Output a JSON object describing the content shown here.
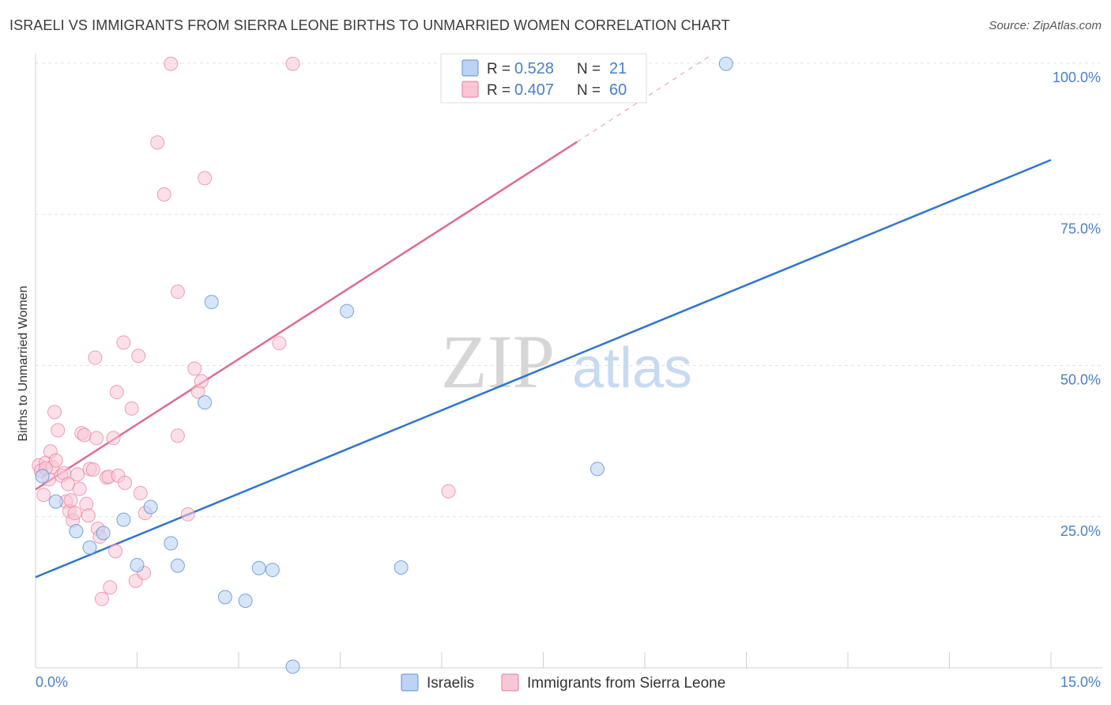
{
  "header": {
    "title": "ISRAELI VS IMMIGRANTS FROM SIERRA LEONE BIRTHS TO UNMARRIED WOMEN CORRELATION CHART",
    "source": "Source: ZipAtlas.com"
  },
  "watermark": {
    "zip": "ZIP",
    "atlas": "atlas"
  },
  "colors": {
    "israelis": "#5b8fd6",
    "israelis_fill": "#bcd3f3",
    "israelis_line": "#2f74d0",
    "sierra": "#e8799c",
    "sierra_fill": "#f8c7d6",
    "sierra_line": "#e06a93",
    "axis_text": "#4a7fcc"
  },
  "chart_data": {
    "type": "scatter",
    "title": "ISRAELI VS IMMIGRANTS FROM SIERRA LEONE BIRTHS TO UNMARRIED WOMEN CORRELATION CHART",
    "xlabel": "",
    "ylabel": "Births to Unmarried Women",
    "xlim": [
      0,
      15
    ],
    "ylim": [
      0,
      100
    ],
    "x_tick_labels": [
      "0.0%",
      "15.0%"
    ],
    "y_ticks": [
      25,
      50,
      75,
      100
    ],
    "y_tick_labels": [
      "25.0%",
      "50.0%",
      "75.0%",
      "100.0%"
    ],
    "grid": true,
    "legend_position": "top-center",
    "series": [
      {
        "name": "Israelis",
        "stats": {
          "r_label": "R =",
          "r_value": "0.528",
          "n_label": "N =",
          "n_value": "21"
        },
        "points": [
          [
            0.1,
            31.7
          ],
          [
            0.3,
            27.5
          ],
          [
            0.6,
            22.6
          ],
          [
            0.8,
            19.9
          ],
          [
            1.0,
            22.3
          ],
          [
            1.3,
            24.5
          ],
          [
            1.5,
            17.0
          ],
          [
            1.7,
            26.6
          ],
          [
            2.0,
            20.6
          ],
          [
            2.1,
            16.9
          ],
          [
            2.5,
            43.9
          ],
          [
            2.6,
            60.5
          ],
          [
            2.8,
            11.7
          ],
          [
            3.1,
            11.1
          ],
          [
            3.3,
            16.5
          ],
          [
            3.5,
            16.2
          ],
          [
            3.8,
            0.2
          ],
          [
            4.6,
            59.0
          ],
          [
            5.4,
            16.6
          ],
          [
            8.3,
            32.9
          ],
          [
            10.2,
            99.9
          ]
        ],
        "trend": {
          "x0": 0,
          "y0": 15.0,
          "x1": 15,
          "y1": 84.0
        }
      },
      {
        "name": "Immigrants from Sierra Leone",
        "stats": {
          "r_label": "R =",
          "r_value": "0.407",
          "n_label": "N =",
          "n_value": "60"
        },
        "points": [
          [
            0.05,
            33.5
          ],
          [
            0.08,
            32.6
          ],
          [
            0.12,
            28.6
          ],
          [
            0.15,
            33.9
          ],
          [
            0.2,
            31.2
          ],
          [
            0.22,
            35.8
          ],
          [
            0.25,
            33.2
          ],
          [
            0.28,
            42.3
          ],
          [
            0.3,
            34.3
          ],
          [
            0.33,
            39.3
          ],
          [
            0.38,
            31.8
          ],
          [
            0.42,
            32.2
          ],
          [
            0.45,
            27.5
          ],
          [
            0.48,
            30.4
          ],
          [
            0.5,
            25.9
          ],
          [
            0.52,
            27.7
          ],
          [
            0.55,
            24.4
          ],
          [
            0.58,
            25.6
          ],
          [
            0.62,
            32.0
          ],
          [
            0.65,
            29.6
          ],
          [
            0.68,
            38.8
          ],
          [
            0.72,
            38.5
          ],
          [
            0.75,
            27.1
          ],
          [
            0.78,
            25.2
          ],
          [
            0.8,
            32.9
          ],
          [
            0.85,
            32.8
          ],
          [
            0.88,
            51.3
          ],
          [
            0.9,
            38.0
          ],
          [
            0.92,
            23.0
          ],
          [
            0.95,
            21.7
          ],
          [
            0.98,
            11.4
          ],
          [
            1.05,
            31.5
          ],
          [
            1.08,
            31.6
          ],
          [
            1.1,
            13.3
          ],
          [
            1.15,
            38.0
          ],
          [
            1.18,
            19.3
          ],
          [
            1.2,
            45.6
          ],
          [
            1.22,
            31.8
          ],
          [
            1.3,
            53.8
          ],
          [
            1.32,
            30.6
          ],
          [
            1.42,
            42.9
          ],
          [
            1.48,
            14.4
          ],
          [
            1.52,
            51.6
          ],
          [
            1.55,
            28.9
          ],
          [
            1.6,
            15.7
          ],
          [
            1.62,
            25.6
          ],
          [
            1.8,
            86.9
          ],
          [
            1.9,
            78.3
          ],
          [
            2.0,
            99.9
          ],
          [
            2.1,
            62.2
          ],
          [
            2.1,
            38.4
          ],
          [
            2.25,
            25.4
          ],
          [
            2.35,
            49.5
          ],
          [
            2.4,
            45.7
          ],
          [
            2.45,
            47.4
          ],
          [
            2.5,
            81.0
          ],
          [
            3.6,
            53.7
          ],
          [
            3.8,
            99.9
          ],
          [
            6.1,
            29.2
          ],
          [
            0.15,
            33.0
          ]
        ],
        "trend": {
          "x0": 0,
          "y0": 29.5,
          "x1": 8.0,
          "y1": 87.0,
          "dash_x1": 10.0,
          "dash_y1": 101.5
        }
      }
    ]
  }
}
